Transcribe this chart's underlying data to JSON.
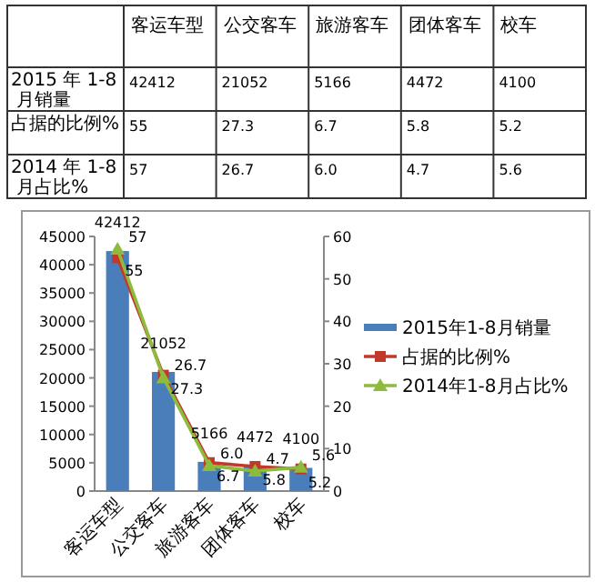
{
  "chart_data": {
    "type": "bar",
    "categories": [
      "客运车型",
      "公交客车",
      "旅游客车",
      "团体客车",
      "校车"
    ],
    "series": [
      {
        "name": "2015年1-8月销量",
        "color": "#4a7ebb",
        "values": [
          42412,
          21052,
          5166,
          4472,
          4100
        ],
        "value_labels": [
          "42412",
          "21052",
          "5166",
          "4472",
          "4100"
        ]
      },
      {
        "name": "占据的比例%",
        "type": "line",
        "axis": "y2",
        "color": "#c0392b",
        "marker": "square",
        "values": [
          55,
          27.3,
          6.7,
          5.8,
          5.2
        ],
        "value_labels": [
          "55",
          "27.3",
          "6.7",
          "5.8",
          "5.2"
        ]
      },
      {
        "name": "2014年1-8月占比%",
        "type": "line",
        "axis": "y2",
        "color": "#8dbb3c",
        "marker": "triangle",
        "values": [
          57,
          26.7,
          6.0,
          4.7,
          5.6
        ],
        "value_labels": [
          "57",
          "26.7",
          "6.0",
          "4.7",
          "5.6"
        ]
      }
    ],
    "annotations": [
      "2015 年 1-8 月销量",
      "占据的比例%",
      "2014 年 1-8 月占比%"
    ],
    "ylim": [
      0,
      45000
    ],
    "yticks": [
      0,
      5000,
      10000,
      15000,
      20000,
      25000,
      30000,
      35000,
      40000,
      45000
    ],
    "y2lim": [
      0,
      60
    ],
    "y2ticks": [
      0,
      10,
      20,
      30,
      40,
      50,
      60
    ],
    "data_labels": true,
    "grid": false,
    "legend": "right"
  }
}
